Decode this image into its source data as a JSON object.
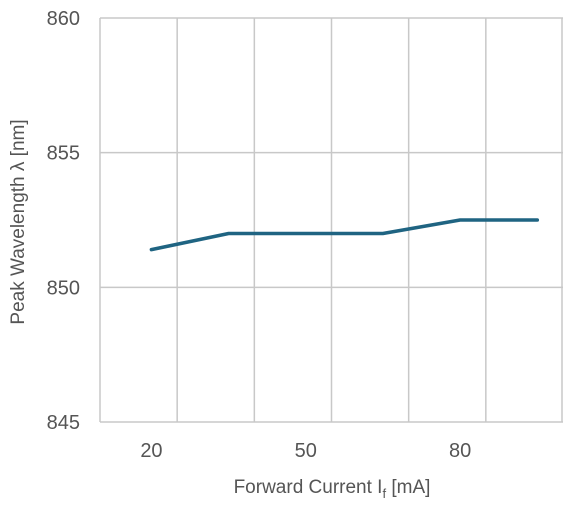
{
  "chart_data": {
    "type": "line",
    "title": "",
    "xlabel_main": "Forward Current I",
    "xlabel_sub": "f",
    "xlabel_unit": " [mA]",
    "ylabel": "Peak Wavelength λ [nm]",
    "xlim": [
      10,
      100
    ],
    "ylim": [
      845,
      860
    ],
    "x_tick_labels": [
      {
        "value": 20,
        "label": "20"
      },
      {
        "value": 50,
        "label": "50"
      },
      {
        "value": 80,
        "label": "80"
      }
    ],
    "x_gridlines": [
      10,
      25,
      40,
      55,
      70,
      85,
      100
    ],
    "y_ticks": [
      845,
      850,
      855,
      860
    ],
    "grid": true,
    "legend": "none",
    "series": [
      {
        "color": "#1f6482",
        "x": [
          20,
          35,
          65,
          80,
          95
        ],
        "y": [
          851.4,
          852.0,
          852.0,
          852.5,
          852.5
        ]
      }
    ]
  },
  "colors": {
    "grid": "#c8c8c8",
    "text": "#555555",
    "line": "#1f6482"
  }
}
